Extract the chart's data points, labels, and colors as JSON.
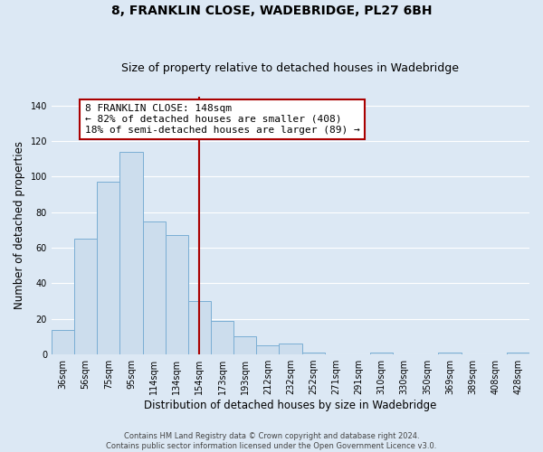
{
  "title": "8, FRANKLIN CLOSE, WADEBRIDGE, PL27 6BH",
  "subtitle": "Size of property relative to detached houses in Wadebridge",
  "xlabel": "Distribution of detached houses by size in Wadebridge",
  "ylabel": "Number of detached properties",
  "bar_color": "#ccdded",
  "bar_edge_color": "#7aaed4",
  "categories": [
    "36sqm",
    "56sqm",
    "75sqm",
    "95sqm",
    "114sqm",
    "134sqm",
    "154sqm",
    "173sqm",
    "193sqm",
    "212sqm",
    "232sqm",
    "252sqm",
    "271sqm",
    "291sqm",
    "310sqm",
    "330sqm",
    "350sqm",
    "369sqm",
    "389sqm",
    "408sqm",
    "428sqm"
  ],
  "values": [
    14,
    65,
    97,
    114,
    75,
    67,
    30,
    19,
    10,
    5,
    6,
    1,
    0,
    0,
    1,
    0,
    0,
    1,
    0,
    0,
    1
  ],
  "ylim": [
    0,
    145
  ],
  "yticks": [
    0,
    20,
    40,
    60,
    80,
    100,
    120,
    140
  ],
  "vline_x_index": 6,
  "vline_color": "#aa0000",
  "annotation_text": "8 FRANKLIN CLOSE: 148sqm\n← 82% of detached houses are smaller (408)\n18% of semi-detached houses are larger (89) →",
  "annotation_box_color": "#ffffff",
  "annotation_box_edge_color": "#aa0000",
  "footer_line1": "Contains HM Land Registry data © Crown copyright and database right 2024.",
  "footer_line2": "Contains public sector information licensed under the Open Government Licence v3.0.",
  "background_color": "#dce8f4",
  "plot_bg_color": "#dce8f4",
  "grid_color": "#ffffff",
  "title_fontsize": 10,
  "subtitle_fontsize": 9,
  "axis_label_fontsize": 8.5,
  "tick_fontsize": 7,
  "annotation_fontsize": 8,
  "footer_fontsize": 6
}
